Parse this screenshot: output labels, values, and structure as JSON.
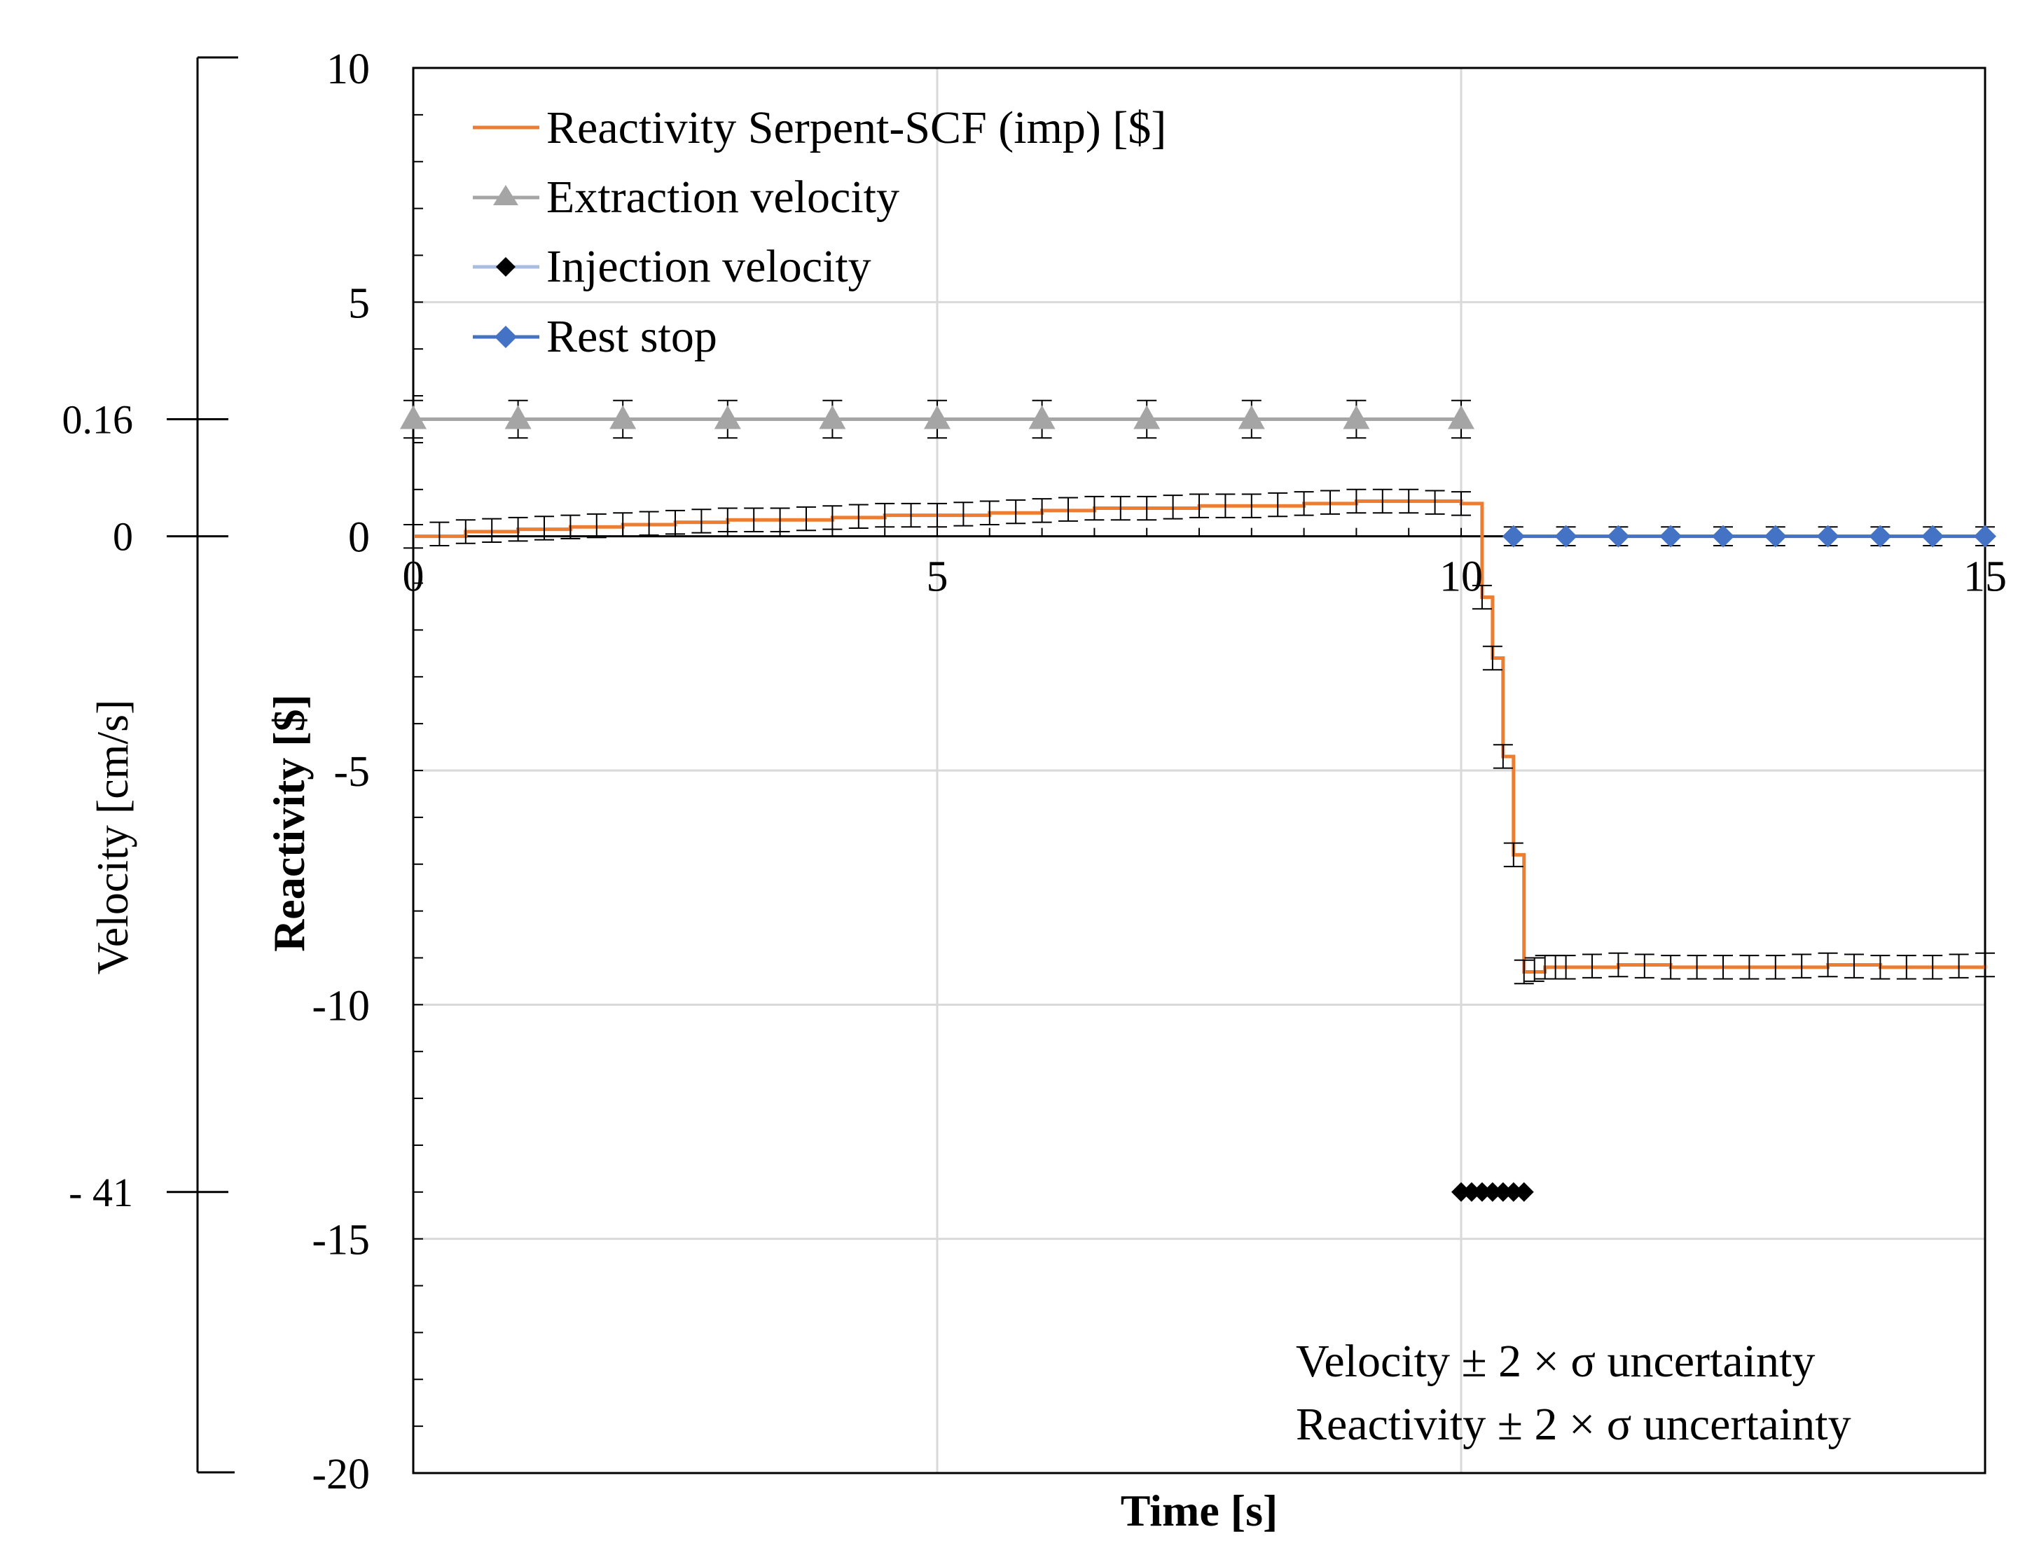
{
  "chart_data": {
    "type": "line",
    "title": "",
    "xlabel": "Time [s]",
    "ylabel": "Reactivity [$]",
    "y2label": "Velocity [cm/s]",
    "xlim": [
      0,
      15
    ],
    "ylim": [
      -20,
      10
    ],
    "x_ticks": [
      "0",
      "5",
      "10",
      "15"
    ],
    "x_tick_values": [
      0,
      5,
      10,
      15
    ],
    "y_ticks": [
      "10",
      "5",
      "0",
      "-5",
      "-10",
      "-15",
      "-20"
    ],
    "y_tick_values": [
      10,
      5,
      0,
      -5,
      -10,
      -15,
      -20
    ],
    "velocity_axis": {
      "ticks": [
        "0.16",
        "0",
        "- 41"
      ],
      "reactivity_equivalent": [
        2.5,
        0,
        -14
      ]
    },
    "grid": true,
    "legend_position": "top-left",
    "legend": [
      "Reactivity Serpent-SCF (imp) [$]",
      "Extraction velocity",
      "Injection velocity",
      "Rest stop"
    ],
    "annotations": [
      "Velocity ± 2 × σ uncertainty",
      "Reactivity ± 2 × σ uncertainty"
    ],
    "colors": {
      "reactivity": "#ed7d31",
      "extraction": "#a5a5a5",
      "injection": "#000000",
      "injection_legend_line": "#a9bde0",
      "rest": "#4472c4",
      "grid": "#d9d9d9"
    },
    "series": [
      {
        "name": "Extraction velocity",
        "marker": "triangle",
        "x": [
          0,
          1,
          2,
          3,
          4,
          5,
          6,
          7,
          8,
          9,
          10
        ],
        "y": [
          2.5,
          2.5,
          2.5,
          2.5,
          2.5,
          2.5,
          2.5,
          2.5,
          2.5,
          2.5,
          2.5
        ],
        "error": 0.4
      },
      {
        "name": "Rest stop",
        "marker": "diamond",
        "x": [
          10.5,
          11,
          11.5,
          12,
          12.5,
          13,
          13.5,
          14,
          14.5,
          15
        ],
        "y": [
          0,
          0,
          0,
          0,
          0,
          0,
          0,
          0,
          0,
          0
        ],
        "error": 0.2
      },
      {
        "name": "Injection velocity",
        "marker": "diamond",
        "x": [
          10,
          10.1,
          10.2,
          10.3,
          10.4,
          10.5,
          10.6
        ],
        "y": [
          -14,
          -14,
          -14,
          -14,
          -14,
          -14,
          -14
        ]
      },
      {
        "name": "Reactivity Serpent-SCF (imp) [$]",
        "marker": "none",
        "step": true,
        "x": [
          0,
          0.5,
          1,
          1.5,
          2,
          2.5,
          3,
          3.5,
          4,
          4.5,
          5,
          5.5,
          6,
          6.5,
          7,
          7.5,
          8,
          8.5,
          9,
          9.5,
          10,
          10.2,
          10.3,
          10.4,
          10.5,
          10.6,
          10.8,
          11,
          11.5,
          12,
          12.5,
          13,
          13.5,
          14,
          14.5,
          15
        ],
        "y": [
          0,
          0.1,
          0.15,
          0.2,
          0.25,
          0.3,
          0.35,
          0.35,
          0.4,
          0.45,
          0.45,
          0.5,
          0.55,
          0.6,
          0.6,
          0.65,
          0.65,
          0.7,
          0.75,
          0.75,
          0.7,
          -1.3,
          -2.6,
          -4.7,
          -6.8,
          -9.3,
          -9.2,
          -9.2,
          -9.15,
          -9.2,
          -9.2,
          -9.2,
          -9.15,
          -9.2,
          -9.2,
          -9.15
        ],
        "error": 0.25
      }
    ]
  }
}
